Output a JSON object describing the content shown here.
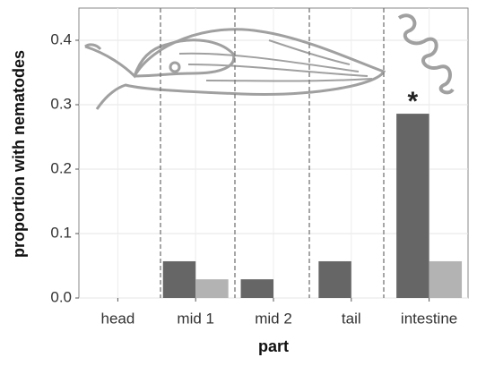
{
  "chart_data": {
    "type": "bar",
    "x_label": "part",
    "y_label": "proportion with nematodes",
    "categories": [
      "head",
      "mid 1",
      "mid 2",
      "tail",
      "intestine"
    ],
    "series": [
      {
        "color": "#666666",
        "values": [
          0,
          0.057,
          0.029,
          0.057,
          0.286
        ]
      },
      {
        "color": "#b3b3b3",
        "values": [
          0,
          0.029,
          0,
          0,
          0.057
        ]
      }
    ],
    "annotation": "*",
    "ylim": [
      0,
      0.45
    ],
    "yticks": [
      {
        "value": 0,
        "label": "0.0"
      },
      0.1,
      0.2,
      0.3,
      0.4
    ],
    "grid": true
  }
}
